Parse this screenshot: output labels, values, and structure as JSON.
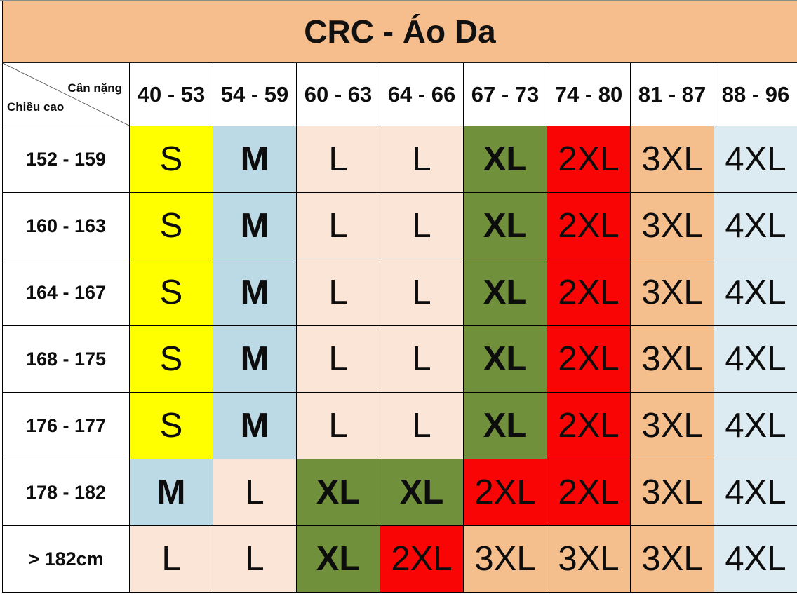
{
  "chart_data": {
    "type": "table",
    "title": "CRC - Áo Da",
    "corner": {
      "column_axis_label": "Cân nặng",
      "row_axis_label": "Chiều cao"
    },
    "columns": [
      "40 - 53",
      "54 - 59",
      "60 - 63",
      "64 - 66",
      "67 - 73",
      "74 - 80",
      "81 - 87",
      "88 - 96"
    ],
    "rows": [
      {
        "height": "152 - 159",
        "sizes": [
          "S",
          "M",
          "L",
          "L",
          "XL",
          "2XL",
          "3XL",
          "4XL"
        ]
      },
      {
        "height": "160 - 163",
        "sizes": [
          "S",
          "M",
          "L",
          "L",
          "XL",
          "2XL",
          "3XL",
          "4XL"
        ]
      },
      {
        "height": "164 - 167",
        "sizes": [
          "S",
          "M",
          "L",
          "L",
          "XL",
          "2XL",
          "3XL",
          "4XL"
        ]
      },
      {
        "height": "168 - 175",
        "sizes": [
          "S",
          "M",
          "L",
          "L",
          "XL",
          "2XL",
          "3XL",
          "4XL"
        ]
      },
      {
        "height": "176 - 177",
        "sizes": [
          "S",
          "M",
          "L",
          "L",
          "XL",
          "2XL",
          "3XL",
          "4XL"
        ]
      },
      {
        "height": "178 - 182",
        "sizes": [
          "M",
          "L",
          "XL",
          "XL",
          "2XL",
          "2XL",
          "3XL",
          "4XL"
        ]
      },
      {
        "height": "> 182cm",
        "sizes": [
          "L",
          "L",
          "XL",
          "2XL",
          "3XL",
          "3XL",
          "3XL",
          "4XL"
        ]
      }
    ],
    "size_styles": {
      "S": {
        "bg": "#FFFF00",
        "bold": false
      },
      "M": {
        "bg": "#BCDAE6",
        "bold": true
      },
      "L": {
        "bg": "#FBE5D6",
        "bold": false
      },
      "XL": {
        "bg": "#71903B",
        "bold": true
      },
      "2XL": {
        "bg": "#FA0505",
        "bold": false
      },
      "3XL": {
        "bg": "#F5BE8D",
        "bold": false
      },
      "4XL": {
        "bg": "#DCEAF1",
        "bold": false
      }
    },
    "colors": {
      "title_bg": "#F6BE8D",
      "grid_line": "#000000",
      "top_line": "#8C8C8C",
      "text": "#0D0D0D"
    }
  }
}
